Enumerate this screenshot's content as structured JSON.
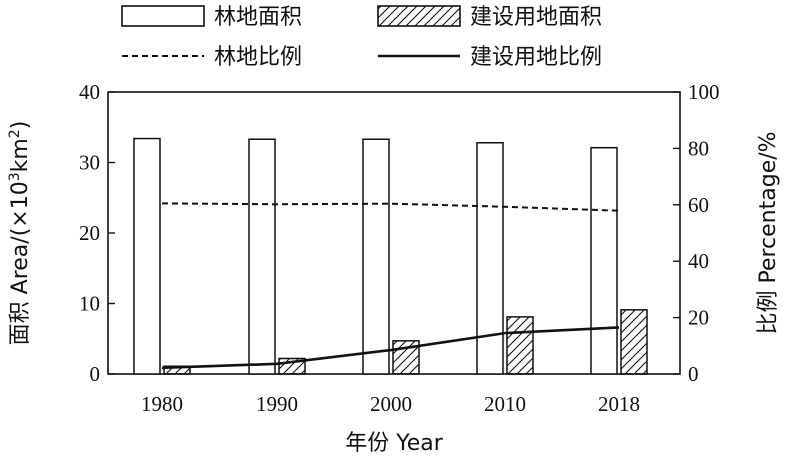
{
  "chart_data": {
    "type": "bar",
    "categories": [
      "1980",
      "1990",
      "2000",
      "2010",
      "2018"
    ],
    "series": [
      {
        "name": "林地面积",
        "kind": "bar",
        "axis": "left",
        "pattern": "open",
        "values": [
          33.4,
          33.3,
          33.3,
          32.8,
          32.1
        ]
      },
      {
        "name": "建设用地面积",
        "kind": "bar",
        "axis": "left",
        "pattern": "hatched",
        "values": [
          1.1,
          2.2,
          4.7,
          8.1,
          9.1
        ]
      },
      {
        "name": "林地比例",
        "kind": "line",
        "axis": "right",
        "style": "dashed",
        "values": [
          60.5,
          60.2,
          60.4,
          59.3,
          57.9
        ]
      },
      {
        "name": "建设用地比例",
        "kind": "line",
        "axis": "right",
        "style": "solid",
        "values": [
          2.2,
          3.6,
          8.5,
          14.5,
          16.5
        ]
      }
    ],
    "xlabel": "年份 Year",
    "ylabel_left": {
      "prefix": "面积 Area/(×10",
      "sup": "3",
      "suffix": "km",
      "sup2": "2",
      "close": ")"
    },
    "ylabel_right": "比例 Percentage/%",
    "ylim_left": [
      0,
      40
    ],
    "yticks_left": [
      0,
      10,
      20,
      30,
      40
    ],
    "ylim_right": [
      0,
      100
    ],
    "yticks_right": [
      0,
      20,
      40,
      60,
      80,
      100
    ],
    "grid": false,
    "legend_position": "top",
    "colors": {
      "ink": "#111111",
      "background": "#ffffff"
    }
  }
}
